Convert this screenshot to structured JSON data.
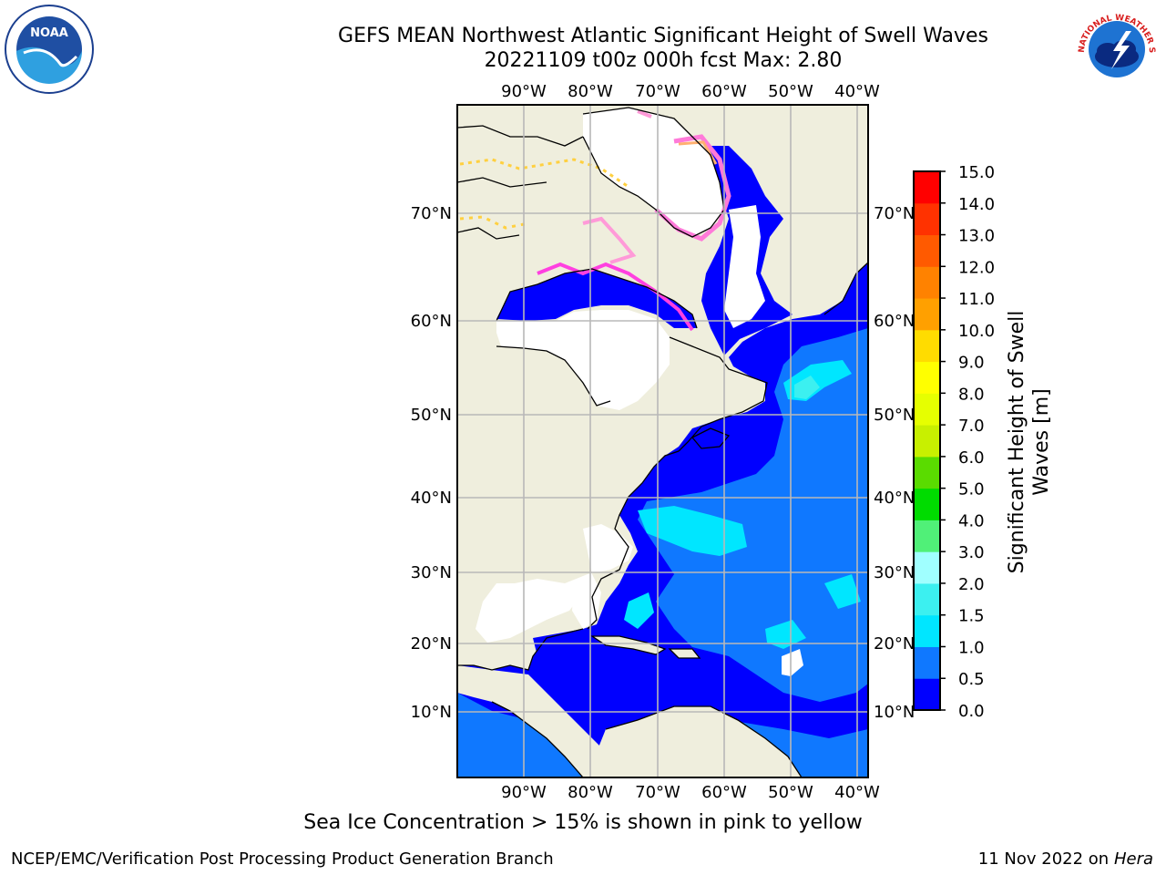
{
  "header": {
    "title_line1": "GEFS MEAN Northwest Atlantic Significant Height of Swell Waves",
    "title_line2": "20221109 t00z 000h fcst   Max: 2.80"
  },
  "map": {
    "lon_labels": [
      "90°W",
      "80°W",
      "70°W",
      "60°W",
      "50°W",
      "40°W"
    ],
    "lat_labels": [
      "70°N",
      "60°N",
      "50°N",
      "40°N",
      "30°N",
      "20°N",
      "10°N"
    ],
    "colors": {
      "land": "#efeedd",
      "ice_free_mask": "#ffffff",
      "grid": "#b8b8b8",
      "coast": "#000000"
    }
  },
  "colorbar": {
    "label_line1": "Significant Height of Swell",
    "label_line2": "Waves [m]",
    "ticks": [
      "0.0",
      "0.5",
      "1.0",
      "1.5",
      "2.0",
      "3.0",
      "4.0",
      "5.0",
      "6.0",
      "7.0",
      "8.0",
      "9.0",
      "10.0",
      "11.0",
      "12.0",
      "13.0",
      "14.0",
      "15.0"
    ],
    "bands": [
      "#0000ff",
      "#0f78ff",
      "#00e6ff",
      "#3cf0f0",
      "#a0ffff",
      "#50f078",
      "#00dc00",
      "#5adc00",
      "#c8f000",
      "#e6ff00",
      "#ffff00",
      "#ffdc00",
      "#ffa000",
      "#ff8200",
      "#ff5a00",
      "#ff3200",
      "#ff0000"
    ]
  },
  "footer": {
    "note": "Sea Ice Concentration > 15% is shown in pink to yellow",
    "credit_left": "NCEP/EMC/Verification Post Processing Product Generation Branch",
    "credit_date": "11 Nov 2022 on",
    "credit_host": "Hera"
  },
  "logos": {
    "noaa_text": "NOAA",
    "nws_text": "NATIONAL WEATHER SERVICE"
  }
}
